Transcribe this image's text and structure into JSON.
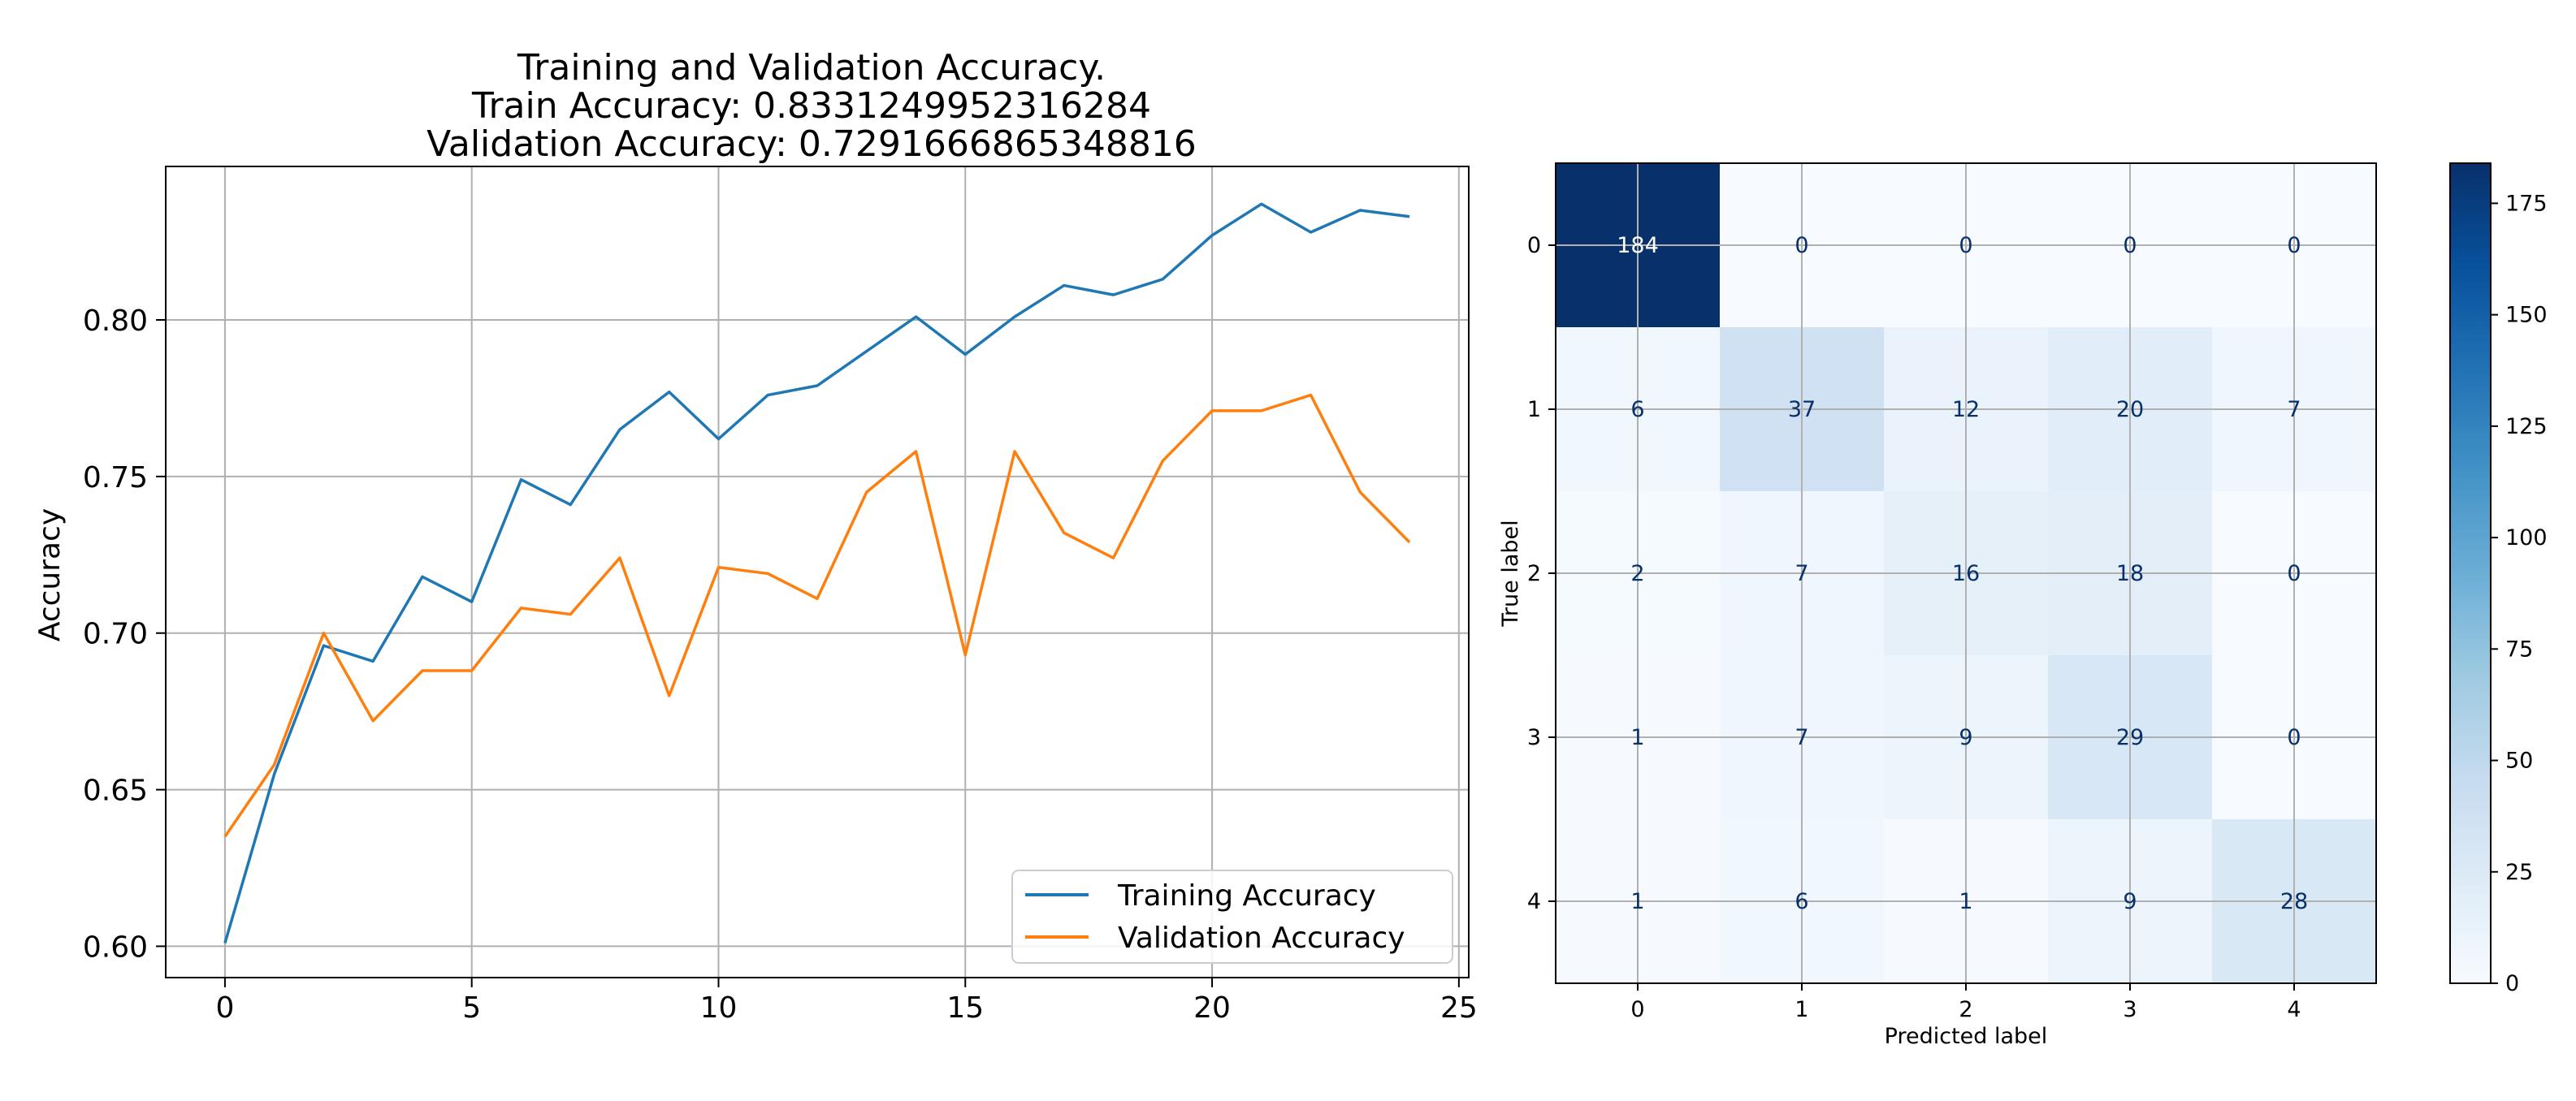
{
  "chart_data": [
    {
      "type": "line",
      "title_lines": [
        "Training and Validation Accuracy.",
        "Train Accuracy: 0.8331249952316284",
        "Validation Accuracy: 0.7291666865348816"
      ],
      "xlabel": "",
      "ylabel": "Accuracy",
      "xlim": [
        -1.2,
        25.2
      ],
      "ylim": [
        0.59,
        0.849
      ],
      "xticks": [
        0,
        5,
        10,
        15,
        20,
        25
      ],
      "yticks": [
        0.6,
        0.65,
        0.7,
        0.75,
        0.8
      ],
      "ytick_labels": [
        "0.60",
        "0.65",
        "0.70",
        "0.75",
        "0.80"
      ],
      "grid": true,
      "legend_position": "lower right",
      "x": [
        0,
        1,
        2,
        3,
        4,
        5,
        6,
        7,
        8,
        9,
        10,
        11,
        12,
        13,
        14,
        15,
        16,
        17,
        18,
        19,
        20,
        21,
        22,
        23,
        24
      ],
      "series": [
        {
          "name": "Training Accuracy",
          "color": "#1f77b4",
          "values": [
            0.601,
            0.655,
            0.696,
            0.691,
            0.718,
            0.71,
            0.749,
            0.741,
            0.765,
            0.777,
            0.762,
            0.776,
            0.779,
            0.79,
            0.801,
            0.789,
            0.801,
            0.811,
            0.808,
            0.813,
            0.827,
            0.837,
            0.828,
            0.835,
            0.833
          ]
        },
        {
          "name": "Validation Accuracy",
          "color": "#ff7f0e",
          "values": [
            0.635,
            0.658,
            0.7,
            0.672,
            0.688,
            0.688,
            0.708,
            0.706,
            0.724,
            0.68,
            0.721,
            0.719,
            0.711,
            0.745,
            0.758,
            0.693,
            0.758,
            0.732,
            0.724,
            0.755,
            0.771,
            0.771,
            0.776,
            0.745,
            0.729
          ]
        }
      ]
    },
    {
      "type": "heatmap",
      "xlabel": "Predicted label",
      "ylabel": "True label",
      "x_categories": [
        "0",
        "1",
        "2",
        "3",
        "4"
      ],
      "y_categories": [
        "0",
        "1",
        "2",
        "3",
        "4"
      ],
      "matrix": [
        [
          184,
          0,
          0,
          0,
          0
        ],
        [
          6,
          37,
          12,
          20,
          7
        ],
        [
          2,
          7,
          16,
          18,
          0
        ],
        [
          1,
          7,
          9,
          29,
          0
        ],
        [
          1,
          6,
          1,
          9,
          28
        ]
      ],
      "colormap": "Blues",
      "colorbar_range": [
        0,
        184
      ],
      "colorbar_ticks": [
        0,
        25,
        50,
        75,
        100,
        125,
        150,
        175
      ],
      "grid": true
    }
  ]
}
